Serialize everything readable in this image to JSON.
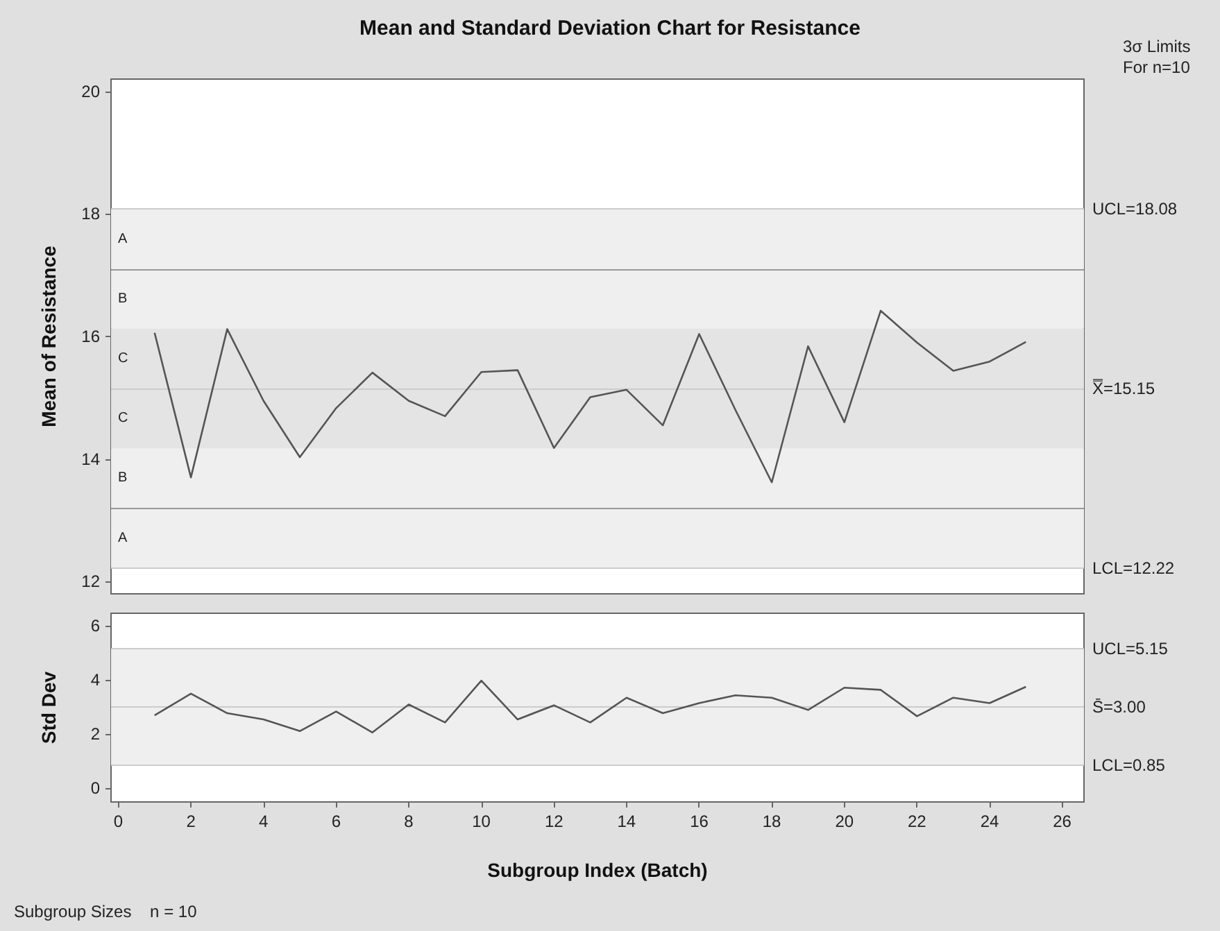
{
  "chart_data": [
    {
      "type": "line",
      "title": "Mean and Standard Deviation Chart for Resistance",
      "ylabel": "Mean of Resistance",
      "annotations": [
        "3σ Limits For n=10"
      ],
      "x": [
        1,
        2,
        3,
        4,
        5,
        6,
        7,
        8,
        9,
        10,
        11,
        12,
        13,
        14,
        15,
        16,
        17,
        18,
        19,
        20,
        21,
        22,
        23,
        24,
        25
      ],
      "series": [
        {
          "color": "#555555",
          "values": [
            16.06,
            13.7,
            16.12,
            14.95,
            14.03,
            14.83,
            15.41,
            14.95,
            14.7,
            15.42,
            15.45,
            14.18,
            15.01,
            15.13,
            14.55,
            16.04,
            14.8,
            13.62,
            15.84,
            14.6,
            16.42,
            15.9,
            15.44,
            15.59,
            15.91
          ]
        }
      ],
      "xlim": [
        -0.2,
        26.6
      ],
      "xticks": [
        0,
        2,
        4,
        6,
        8,
        10,
        12,
        14,
        16,
        18,
        20,
        22,
        24,
        26
      ],
      "ylim": [
        11.8,
        20.2
      ],
      "yticks": [
        12,
        14,
        16,
        18,
        20
      ],
      "tick_labels": "y",
      "marker": "none",
      "line_style": "solid",
      "grid": false,
      "bands": [
        {
          "axis": "y",
          "from": 17.1,
          "to": 18.08,
          "label": "A",
          "color": "#efefef"
        },
        {
          "axis": "y",
          "from": 16.13,
          "to": 17.1,
          "label": "B",
          "color": "#efefef"
        },
        {
          "axis": "y",
          "from": 15.15,
          "to": 16.13,
          "label": "C",
          "color": "#e4e4e4"
        },
        {
          "axis": "y",
          "from": 14.17,
          "to": 15.15,
          "label": "C",
          "color": "#e4e4e4"
        },
        {
          "axis": "y",
          "from": 13.2,
          "to": 14.17,
          "label": "B",
          "color": "#efefef"
        },
        {
          "axis": "y",
          "from": 12.22,
          "to": 13.2,
          "label": "A",
          "color": "#efefef"
        }
      ],
      "ref_lines": [
        {
          "axis": "y",
          "value": 18.08,
          "label": "UCL=18.08",
          "color": "#cccccc"
        },
        {
          "axis": "y",
          "value": 17.1,
          "color": "#999999"
        },
        {
          "axis": "y",
          "value": 15.15,
          "label": "X̿=15.15",
          "color": "#cccccc"
        },
        {
          "axis": "y",
          "value": 13.2,
          "color": "#999999"
        },
        {
          "axis": "y",
          "value": 12.22,
          "label": "LCL=12.22",
          "color": "#cccccc"
        }
      ]
    },
    {
      "type": "line",
      "ylabel": "Std Dev",
      "xlabel": "Subgroup Index (Batch)",
      "annotations": [
        "Subgroup Sizes    n = 10"
      ],
      "x": [
        1,
        2,
        3,
        4,
        5,
        6,
        7,
        8,
        9,
        10,
        11,
        12,
        13,
        14,
        15,
        16,
        17,
        18,
        19,
        20,
        21,
        22,
        23,
        24,
        25
      ],
      "series": [
        {
          "color": "#555555",
          "values": [
            2.69,
            3.49,
            2.77,
            2.54,
            2.11,
            2.83,
            2.06,
            3.09,
            2.43,
            3.97,
            2.54,
            3.06,
            2.43,
            3.34,
            2.77,
            3.14,
            3.43,
            3.34,
            2.89,
            3.71,
            3.63,
            2.66,
            3.34,
            3.14,
            3.74
          ]
        }
      ],
      "xlim": [
        -0.2,
        26.6
      ],
      "xticks": [
        0,
        2,
        4,
        6,
        8,
        10,
        12,
        14,
        16,
        18,
        20,
        22,
        24,
        26
      ],
      "ylim": [
        -0.5,
        6.45
      ],
      "yticks": [
        0,
        2,
        4,
        6
      ],
      "marker": "none",
      "line_style": "solid",
      "grid": false,
      "bands": [
        {
          "axis": "y",
          "from": 0.85,
          "to": 5.15,
          "color": "#efefef"
        }
      ],
      "ref_lines": [
        {
          "axis": "y",
          "value": 5.15,
          "label": "UCL=5.15",
          "color": "#cccccc"
        },
        {
          "axis": "y",
          "value": 3.0,
          "label": "S̄=3.00",
          "color": "#cccccc"
        },
        {
          "axis": "y",
          "value": 0.85,
          "label": "LCL=0.85",
          "color": "#cccccc"
        }
      ]
    }
  ]
}
